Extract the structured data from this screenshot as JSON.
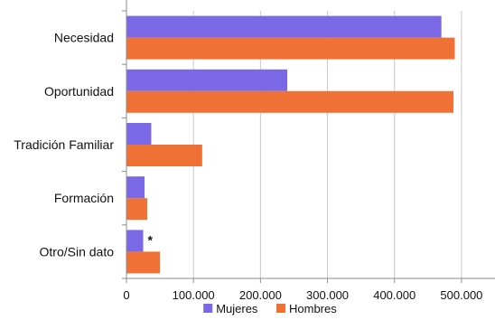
{
  "chart_data": {
    "type": "bar",
    "orientation": "horizontal",
    "categories": [
      "Necesidad",
      "Oportunidad",
      "Tradición Familiar",
      "Formación",
      "Otro/Sin dato"
    ],
    "series": [
      {
        "name": "Mujeres",
        "color": "#7b68e6",
        "values": [
          470000,
          240000,
          37000,
          27000,
          25000
        ]
      },
      {
        "name": "Hombres",
        "color": "#f07136",
        "values": [
          490000,
          488000,
          113000,
          31000,
          50000
        ]
      }
    ],
    "xlim": [
      0,
      550000
    ],
    "xticks": [
      0,
      100000,
      200000,
      300000,
      400000,
      500000
    ],
    "xtick_labels": [
      "0",
      "100.000",
      "200.000",
      "300.000",
      "400.000",
      "500.000"
    ],
    "grid": true,
    "legend_position": "bottom",
    "annotations": [
      {
        "text": "*",
        "category": "Otro/Sin dato",
        "series": "Mujeres"
      }
    ]
  }
}
